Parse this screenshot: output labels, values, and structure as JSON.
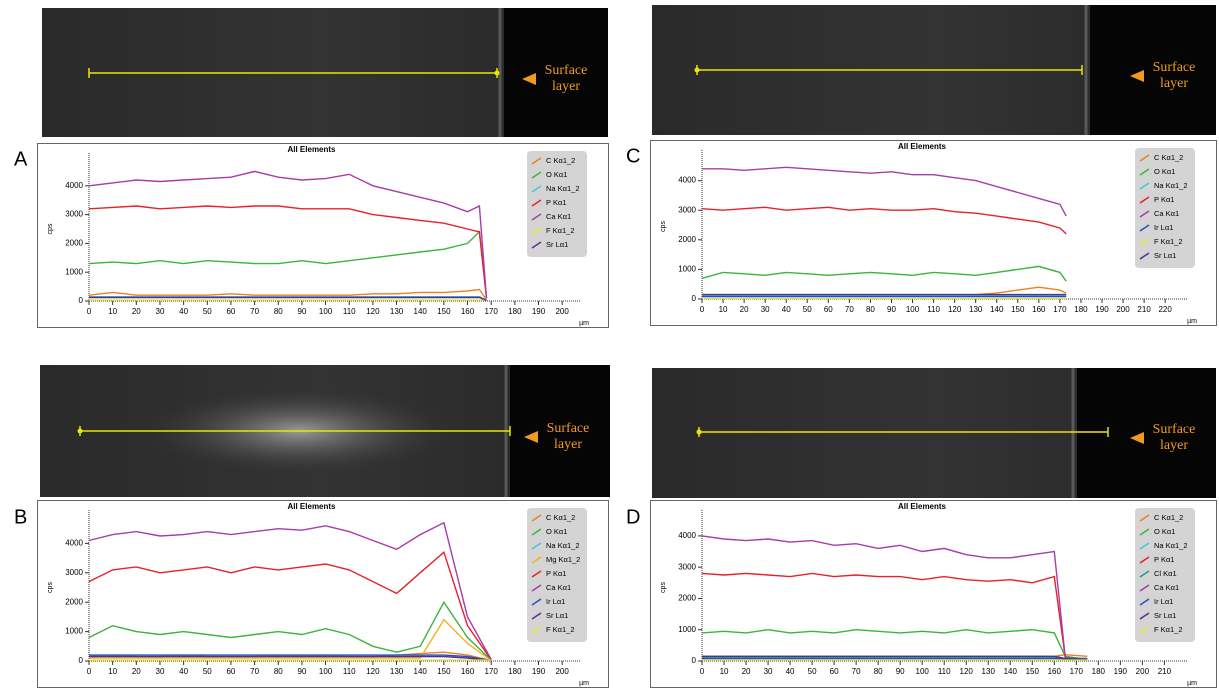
{
  "chart_data": [
    {
      "type": "line",
      "panel_label": "A",
      "annotation": [
        "Surface",
        "layer"
      ],
      "title": "All Elements",
      "ylabel": "cps",
      "xlabel": "µm",
      "x": [
        0,
        10,
        20,
        30,
        40,
        50,
        60,
        70,
        80,
        90,
        100,
        110,
        120,
        130,
        140,
        150,
        160,
        165,
        168
      ],
      "xlim": [
        0,
        205
      ],
      "xticks": [
        0,
        10,
        20,
        30,
        40,
        50,
        60,
        70,
        80,
        90,
        100,
        110,
        120,
        130,
        140,
        150,
        160,
        170,
        180,
        190,
        200
      ],
      "ylim": [
        0,
        5000
      ],
      "yticks": [
        0,
        1000,
        2000,
        3000,
        4000
      ],
      "legend": "upper right",
      "series": [
        {
          "name": "C Kα1_2",
          "color": "#f07f1e",
          "values": [
            200,
            300,
            200,
            200,
            200,
            200,
            250,
            200,
            200,
            200,
            200,
            200,
            250,
            250,
            300,
            300,
            350,
            400,
            50
          ]
        },
        {
          "name": "O Kα1",
          "color": "#3cb43c",
          "values": [
            1300,
            1350,
            1300,
            1400,
            1300,
            1400,
            1350,
            1300,
            1300,
            1400,
            1300,
            1400,
            1500,
            1600,
            1700,
            1800,
            2000,
            2400,
            100
          ]
        },
        {
          "name": "Na Kα1_2",
          "color": "#3cc8dc",
          "values": [
            150,
            150,
            150,
            150,
            150,
            150,
            150,
            150,
            150,
            150,
            150,
            150,
            150,
            150,
            150,
            150,
            150,
            150,
            30
          ]
        },
        {
          "name": "P Kα1",
          "color": "#e8202a",
          "values": [
            3200,
            3250,
            3300,
            3200,
            3250,
            3300,
            3250,
            3300,
            3300,
            3200,
            3200,
            3200,
            3000,
            2900,
            2800,
            2700,
            2500,
            2400,
            100
          ]
        },
        {
          "name": "Ca Kα1",
          "color": "#a83ca8",
          "values": [
            4000,
            4100,
            4200,
            4150,
            4200,
            4250,
            4300,
            4500,
            4300,
            4200,
            4250,
            4400,
            4000,
            3800,
            3600,
            3400,
            3100,
            3300,
            100
          ]
        },
        {
          "name": "F Kα1_2",
          "color": "#e6e632",
          "values": [
            30,
            30,
            30,
            30,
            30,
            30,
            30,
            30,
            30,
            30,
            30,
            30,
            30,
            30,
            30,
            30,
            30,
            30,
            30
          ]
        },
        {
          "name": "Sr Lα1",
          "color": "#5a2a96",
          "values": [
            120,
            120,
            120,
            120,
            120,
            120,
            120,
            120,
            120,
            120,
            120,
            120,
            120,
            120,
            120,
            120,
            120,
            120,
            20
          ]
        }
      ]
    },
    {
      "type": "line",
      "panel_label": "B",
      "annotation": [
        "Surface",
        "layer"
      ],
      "title": "All Elements",
      "ylabel": "cps",
      "xlabel": "µm",
      "x": [
        0,
        10,
        20,
        30,
        40,
        50,
        60,
        70,
        80,
        90,
        100,
        110,
        120,
        130,
        140,
        150,
        160,
        170
      ],
      "xlim": [
        0,
        205
      ],
      "xticks": [
        0,
        10,
        20,
        30,
        40,
        50,
        60,
        70,
        80,
        90,
        100,
        110,
        120,
        130,
        140,
        150,
        160,
        170,
        180,
        190,
        200
      ],
      "ylim": [
        0,
        5000
      ],
      "yticks": [
        0,
        1000,
        2000,
        3000,
        4000
      ],
      "legend": "upper right",
      "series": [
        {
          "name": "C Kα1_2",
          "color": "#f07f1e",
          "values": [
            150,
            200,
            150,
            150,
            200,
            150,
            150,
            150,
            200,
            150,
            200,
            150,
            150,
            200,
            250,
            300,
            200,
            20
          ]
        },
        {
          "name": "O Kα1",
          "color": "#3cb43c",
          "values": [
            800,
            1200,
            1000,
            900,
            1000,
            900,
            800,
            900,
            1000,
            900,
            1100,
            900,
            500,
            300,
            500,
            2000,
            800,
            30
          ]
        },
        {
          "name": "Na Kα1_2",
          "color": "#3cc8dc",
          "values": [
            150,
            150,
            150,
            150,
            150,
            150,
            150,
            150,
            150,
            150,
            150,
            150,
            150,
            150,
            150,
            150,
            100,
            20
          ]
        },
        {
          "name": "Mg Kα1_2",
          "color": "#f0b020",
          "values": [
            100,
            100,
            100,
            100,
            100,
            100,
            100,
            100,
            100,
            100,
            100,
            100,
            100,
            100,
            100,
            1400,
            600,
            20
          ]
        },
        {
          "name": "P Kα1",
          "color": "#e8202a",
          "values": [
            2700,
            3100,
            3200,
            3000,
            3100,
            3200,
            3000,
            3200,
            3100,
            3200,
            3300,
            3100,
            2700,
            2300,
            3000,
            3700,
            1200,
            40
          ]
        },
        {
          "name": "Ca Kα1",
          "color": "#a83ca8",
          "values": [
            4100,
            4300,
            4400,
            4250,
            4300,
            4400,
            4300,
            4400,
            4500,
            4450,
            4600,
            4400,
            4100,
            3800,
            4300,
            4700,
            1500,
            50
          ]
        },
        {
          "name": "Ir Lα1",
          "color": "#2050c8",
          "values": [
            200,
            200,
            200,
            200,
            200,
            200,
            200,
            200,
            200,
            200,
            200,
            200,
            200,
            200,
            200,
            200,
            150,
            20
          ]
        },
        {
          "name": "Sr Lα1",
          "color": "#5a2a96",
          "values": [
            150,
            150,
            150,
            150,
            150,
            150,
            150,
            150,
            150,
            150,
            150,
            150,
            150,
            150,
            150,
            150,
            100,
            20
          ]
        },
        {
          "name": "F Kα1_2",
          "color": "#e6e632",
          "values": [
            30,
            30,
            30,
            30,
            30,
            30,
            30,
            30,
            30,
            30,
            30,
            30,
            30,
            30,
            30,
            30,
            30,
            30
          ]
        }
      ]
    },
    {
      "type": "line",
      "panel_label": "C",
      "annotation": [
        "Surface",
        "layer"
      ],
      "title": "All Elements",
      "ylabel": "cps",
      "xlabel": "µm",
      "x": [
        0,
        10,
        20,
        30,
        40,
        50,
        60,
        70,
        80,
        90,
        100,
        110,
        120,
        130,
        140,
        150,
        160,
        170,
        173
      ],
      "xlim": [
        0,
        228
      ],
      "xticks": [
        0,
        10,
        20,
        30,
        40,
        50,
        60,
        70,
        80,
        90,
        100,
        110,
        120,
        130,
        140,
        150,
        160,
        170,
        180,
        190,
        200,
        210,
        220
      ],
      "ylim": [
        0,
        4900
      ],
      "yticks": [
        0,
        1000,
        2000,
        3000,
        4000
      ],
      "legend": "upper right",
      "series": [
        {
          "name": "C Kα1_2",
          "color": "#f07f1e",
          "values": [
            150,
            150,
            150,
            150,
            150,
            150,
            150,
            150,
            150,
            150,
            150,
            150,
            150,
            150,
            200,
            300,
            400,
            300,
            200
          ]
        },
        {
          "name": "O Kα1",
          "color": "#3cb43c",
          "values": [
            700,
            900,
            850,
            800,
            900,
            850,
            800,
            850,
            900,
            850,
            800,
            900,
            850,
            800,
            900,
            1000,
            1100,
            900,
            600
          ]
        },
        {
          "name": "Na Kα1_2",
          "color": "#3cc8dc",
          "values": [
            120,
            120,
            120,
            120,
            120,
            120,
            120,
            120,
            120,
            120,
            120,
            120,
            120,
            120,
            120,
            120,
            120,
            120,
            120
          ]
        },
        {
          "name": "P Kα1",
          "color": "#e8202a",
          "values": [
            3050,
            3000,
            3050,
            3100,
            3000,
            3050,
            3100,
            3000,
            3050,
            3000,
            3000,
            3050,
            2950,
            2900,
            2800,
            2700,
            2600,
            2400,
            2200
          ]
        },
        {
          "name": "Ca Kα1",
          "color": "#a83ca8",
          "values": [
            4400,
            4400,
            4350,
            4400,
            4450,
            4400,
            4350,
            4300,
            4250,
            4300,
            4200,
            4200,
            4100,
            4000,
            3800,
            3600,
            3400,
            3200,
            2800
          ]
        },
        {
          "name": "Ir Lα1",
          "color": "#2050c8",
          "values": [
            80,
            80,
            80,
            80,
            80,
            80,
            80,
            80,
            80,
            80,
            80,
            80,
            80,
            80,
            80,
            80,
            80,
            80,
            80
          ]
        },
        {
          "name": "F Kα1_2",
          "color": "#e6e632",
          "values": [
            20,
            20,
            20,
            20,
            20,
            20,
            20,
            20,
            20,
            20,
            20,
            20,
            20,
            20,
            20,
            20,
            20,
            20,
            20
          ]
        },
        {
          "name": "Sr Lα1",
          "color": "#5a2a96",
          "values": [
            150,
            150,
            150,
            150,
            150,
            150,
            150,
            150,
            150,
            150,
            150,
            150,
            150,
            150,
            150,
            150,
            150,
            150,
            150
          ]
        }
      ]
    },
    {
      "type": "line",
      "panel_label": "D",
      "annotation": [
        "Surface",
        "layer"
      ],
      "title": "All Elements",
      "ylabel": "cps",
      "xlabel": "µm",
      "x": [
        0,
        10,
        20,
        30,
        40,
        50,
        60,
        70,
        80,
        90,
        100,
        110,
        120,
        130,
        140,
        150,
        160,
        165,
        175
      ],
      "xlim": [
        0,
        218
      ],
      "xticks": [
        0,
        10,
        20,
        30,
        40,
        50,
        60,
        70,
        80,
        90,
        100,
        110,
        120,
        130,
        140,
        150,
        160,
        170,
        180,
        190,
        200,
        210
      ],
      "ylim": [
        0,
        4700
      ],
      "yticks": [
        0,
        1000,
        2000,
        3000,
        4000
      ],
      "legend": "upper right",
      "series": [
        {
          "name": "C Kα1_2",
          "color": "#f07f1e",
          "values": [
            150,
            150,
            150,
            150,
            150,
            150,
            150,
            150,
            150,
            150,
            150,
            150,
            150,
            150,
            150,
            150,
            150,
            200,
            150
          ]
        },
        {
          "name": "O Kα1",
          "color": "#3cb43c",
          "values": [
            900,
            950,
            900,
            1000,
            900,
            950,
            900,
            1000,
            950,
            900,
            950,
            900,
            1000,
            900,
            950,
            1000,
            900,
            150,
            50
          ]
        },
        {
          "name": "Na Kα1_2",
          "color": "#3cc8dc",
          "values": [
            120,
            120,
            120,
            120,
            120,
            120,
            120,
            120,
            120,
            120,
            120,
            120,
            120,
            120,
            120,
            120,
            120,
            80,
            40
          ]
        },
        {
          "name": "P Kα1",
          "color": "#e8202a",
          "values": [
            2800,
            2750,
            2800,
            2750,
            2700,
            2800,
            2700,
            2750,
            2700,
            2700,
            2600,
            2700,
            2600,
            2550,
            2600,
            2500,
            2700,
            100,
            50
          ]
        },
        {
          "name": "Cl Kα1",
          "color": "#20a080",
          "values": [
            100,
            100,
            100,
            100,
            100,
            100,
            100,
            100,
            100,
            100,
            100,
            100,
            100,
            100,
            100,
            100,
            100,
            60,
            30
          ]
        },
        {
          "name": "Ca Kα1",
          "color": "#a83ca8",
          "values": [
            4000,
            3900,
            3850,
            3900,
            3800,
            3850,
            3700,
            3750,
            3600,
            3700,
            3500,
            3600,
            3400,
            3300,
            3300,
            3400,
            3500,
            100,
            50
          ]
        },
        {
          "name": "Ir Lα1",
          "color": "#2050c8",
          "values": [
            80,
            80,
            80,
            80,
            80,
            80,
            80,
            80,
            80,
            80,
            80,
            80,
            80,
            80,
            80,
            80,
            80,
            80,
            80
          ]
        },
        {
          "name": "Sr Lα1",
          "color": "#5a2a96",
          "values": [
            150,
            150,
            150,
            150,
            150,
            150,
            150,
            150,
            150,
            150,
            150,
            150,
            150,
            150,
            150,
            150,
            150,
            80,
            30
          ]
        },
        {
          "name": "F Kα1_2",
          "color": "#e6e632",
          "values": [
            30,
            30,
            30,
            30,
            30,
            30,
            30,
            30,
            30,
            30,
            30,
            30,
            30,
            30,
            30,
            30,
            30,
            30,
            30
          ]
        }
      ]
    }
  ]
}
